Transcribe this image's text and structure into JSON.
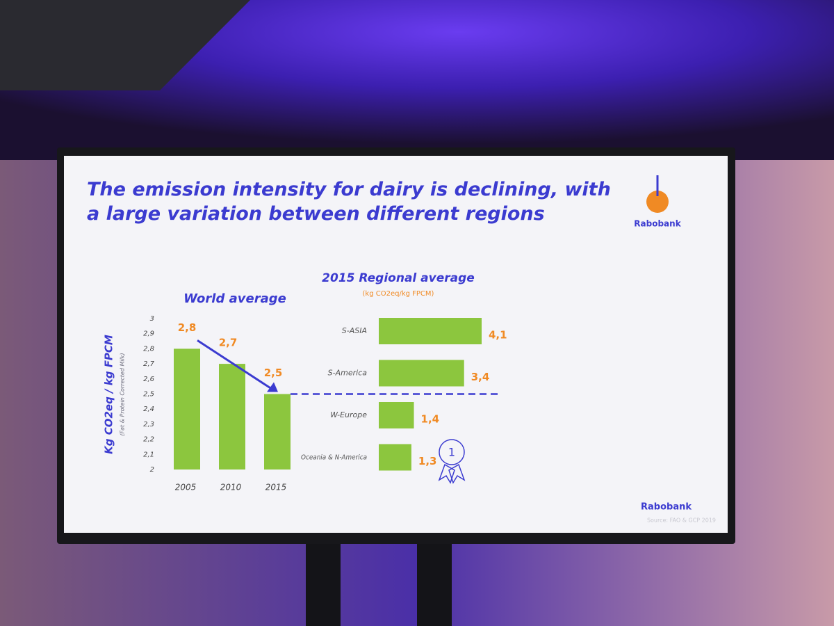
{
  "slide": {
    "title": "The emission intensity for dairy is declining, with a large variation between different regions",
    "logo": "Rabobank",
    "footer_logo": "Rabobank",
    "source": "Source: FAO & GCP 2019",
    "award_badge": "1"
  },
  "chart_data": [
    {
      "type": "bar",
      "title": "World average",
      "y_label": "Kg CO2eq / kg FPCM",
      "y_sublabel": "(Fat & Protein Corrected Milk)",
      "categories": [
        "2005",
        "2010",
        "2015"
      ],
      "values": [
        2.8,
        2.7,
        2.5
      ],
      "value_labels": [
        "2,8",
        "2,7",
        "2,5"
      ],
      "color": "#8cc63e",
      "ylim": [
        2,
        3
      ],
      "yticks": [
        2,
        {
          "value": 2.1,
          "label": "2,1"
        },
        {
          "value": 2.2,
          "label": "2,2"
        },
        {
          "value": 2.3,
          "label": "2,3"
        },
        {
          "value": 2.4,
          "label": "2,4"
        },
        {
          "value": 2.5,
          "label": "2,5"
        },
        {
          "value": 2.6,
          "label": "2,6"
        },
        {
          "value": 2.7,
          "label": "2,7"
        },
        {
          "value": 2.8,
          "label": "2,8"
        },
        {
          "value": 2.9,
          "label": "2,9"
        },
        3
      ]
    },
    {
      "type": "hbar",
      "title": "2015 Regional average",
      "subtitle": "(kg CO2eq/kg FPCM)",
      "categories": [
        "S-ASIA",
        "S-America",
        "W-Europe",
        "Oceania & N-America"
      ],
      "values": [
        4.1,
        3.4,
        1.4,
        1.3
      ],
      "value_labels": [
        "4,1",
        "3,4",
        "1,4",
        "1,3"
      ],
      "color": "#8cc63e"
    }
  ]
}
